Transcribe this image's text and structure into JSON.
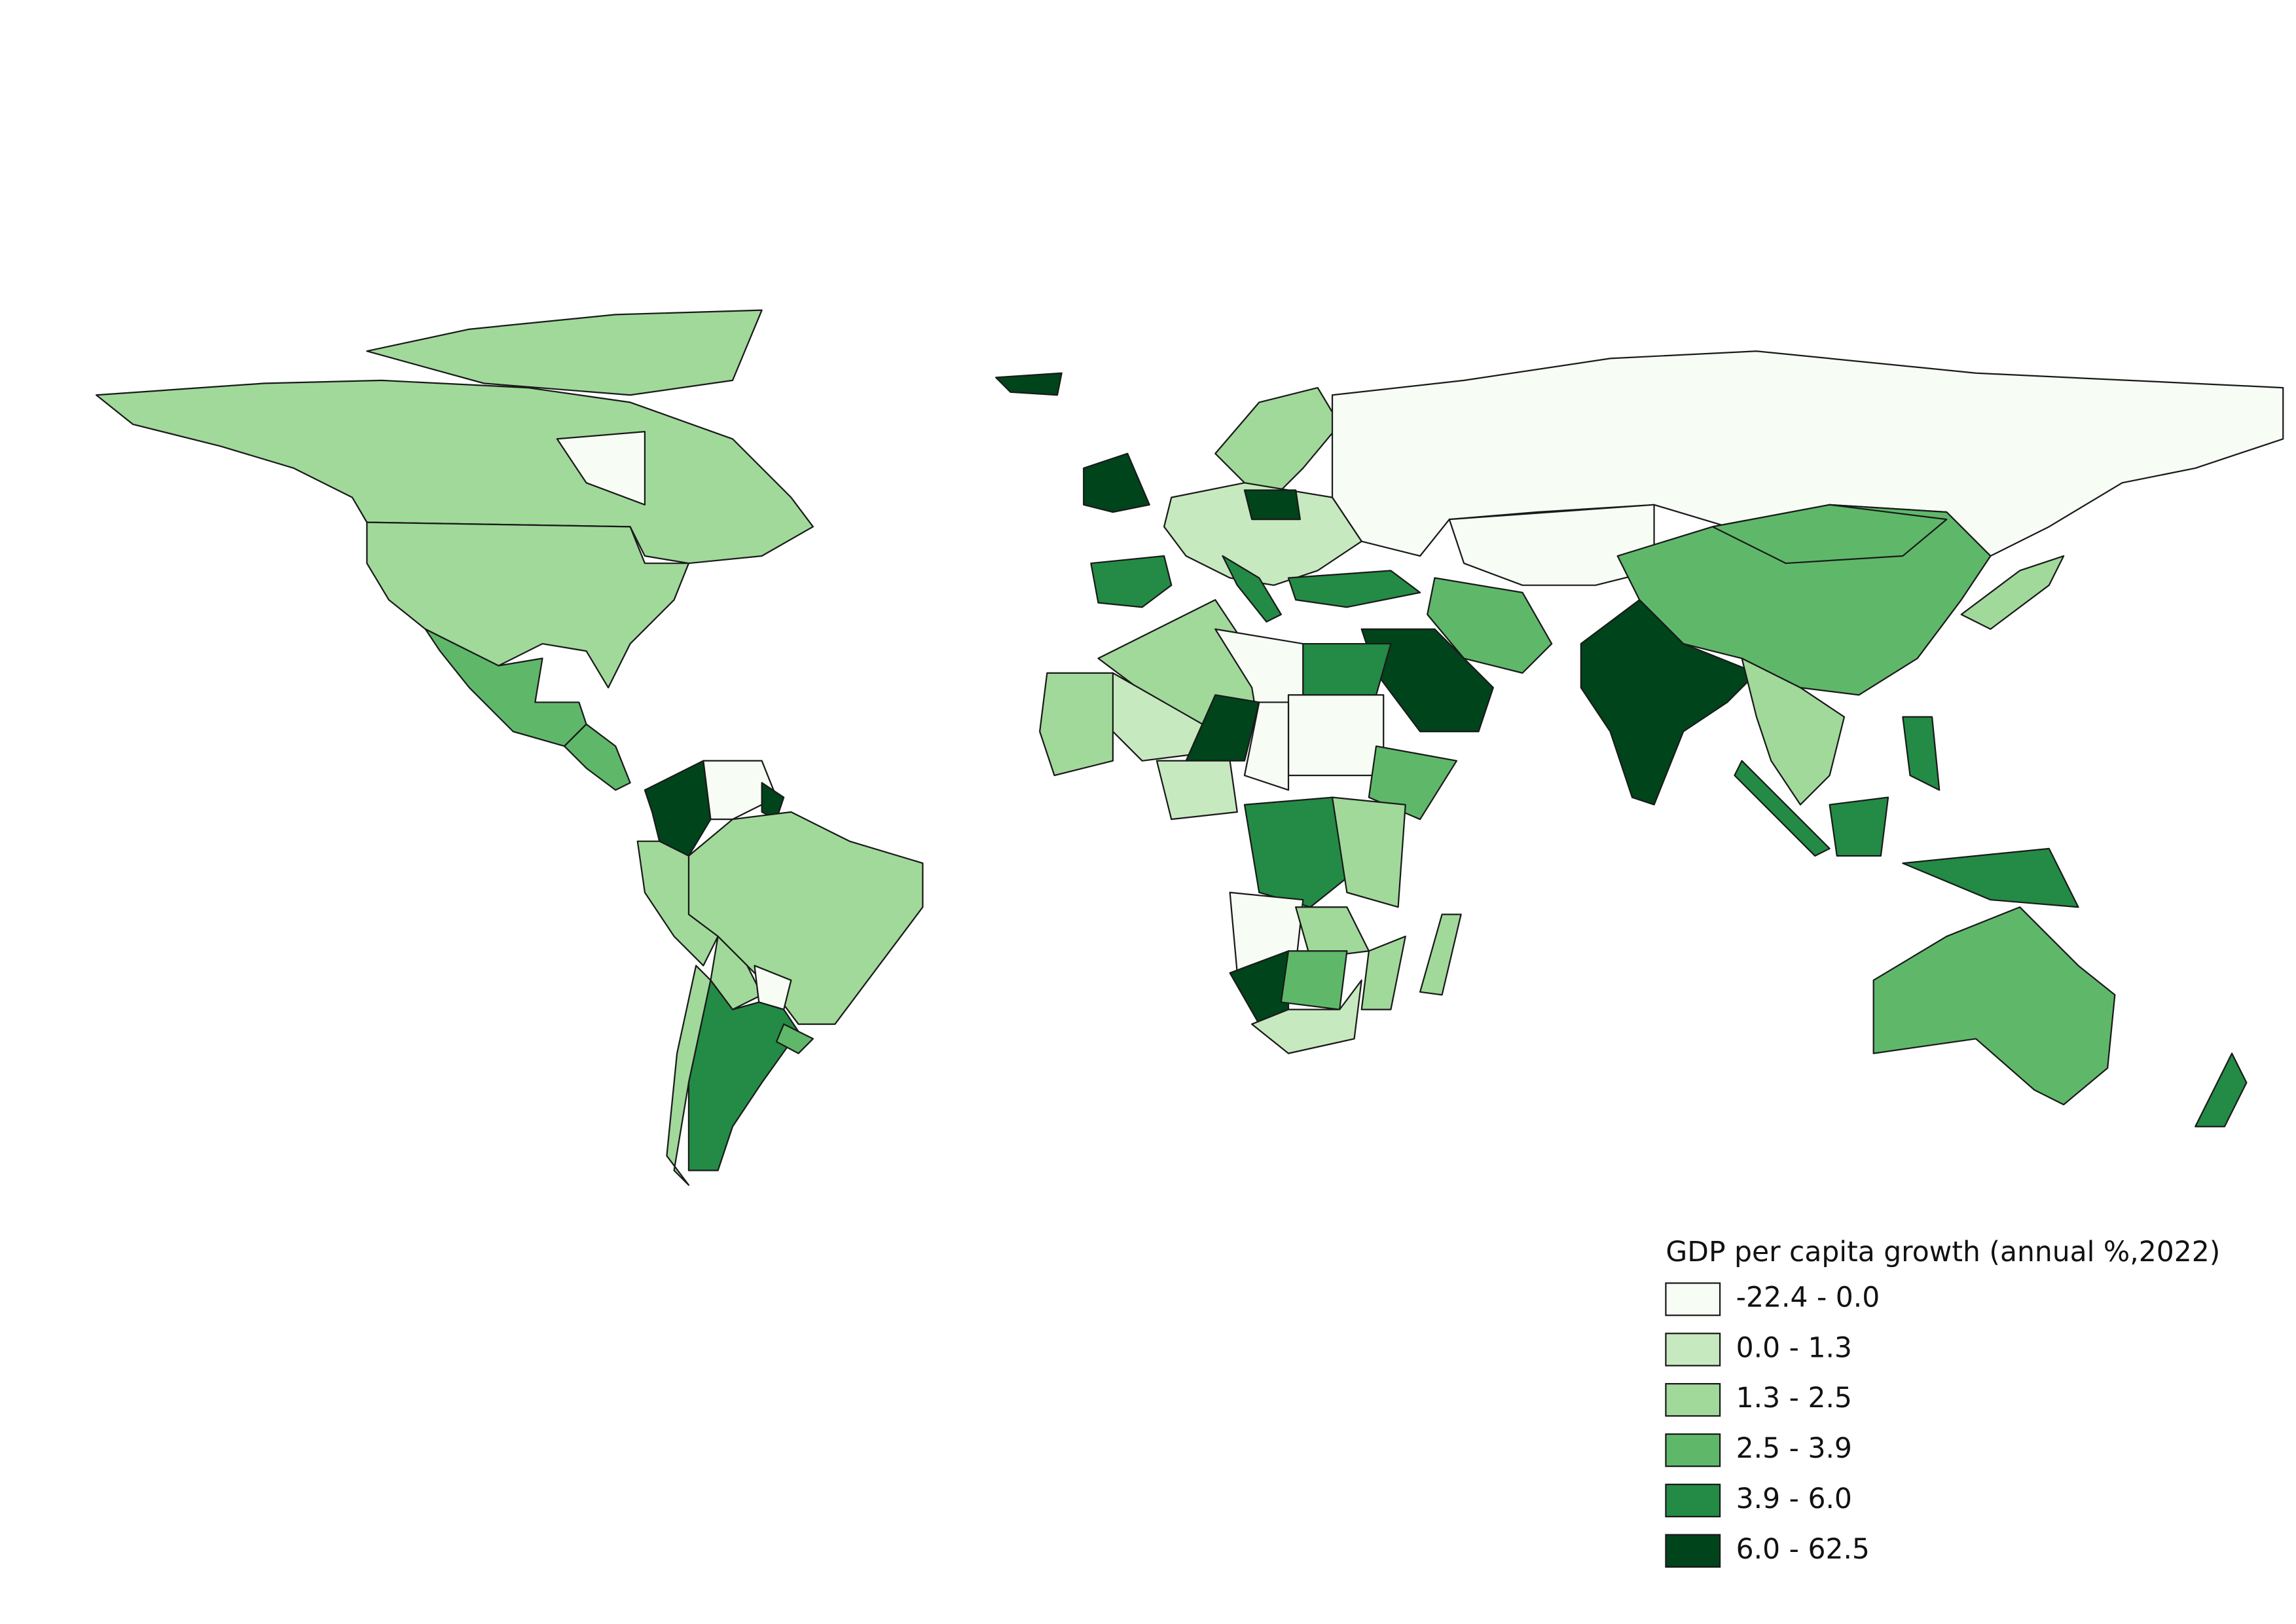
{
  "legend": {
    "title": "GDP per capita growth (annual %,2022)",
    "items": [
      {
        "label": "-22.4 - 0.0",
        "color": "#f7fcf5"
      },
      {
        "label": "0.0 - 1.3",
        "color": "#c7e9c0"
      },
      {
        "label": "1.3 - 2.5",
        "color": "#a1d99b"
      },
      {
        "label": "2.5 - 3.9",
        "color": "#5fb86a"
      },
      {
        "label": "3.9 - 6.0",
        "color": "#238b45"
      },
      {
        "label": "6.0 - 62.5",
        "color": "#00441b"
      }
    ]
  }
}
